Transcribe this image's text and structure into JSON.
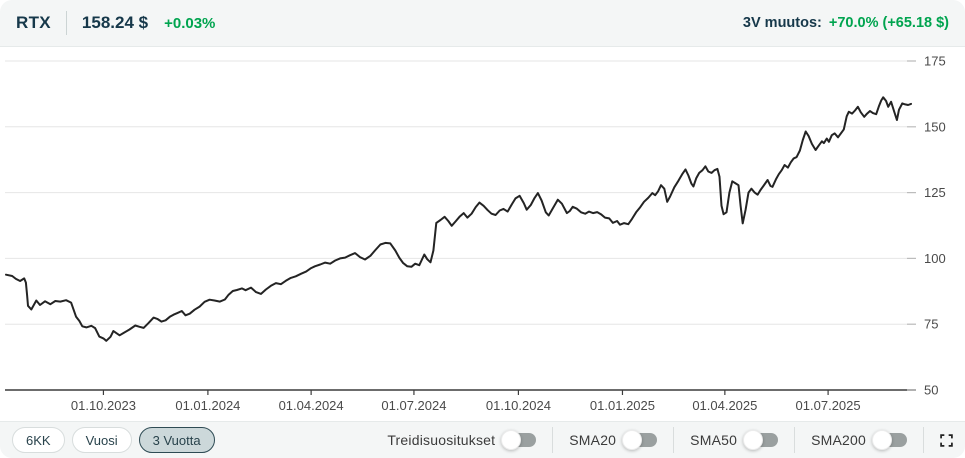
{
  "header": {
    "ticker": "RTX",
    "price": "158.24 $",
    "change_percent": "+0.03%",
    "period_change_label": "3V muutos:",
    "period_change_value": "+70.0% (+65.18 $)"
  },
  "controls": {
    "periods": [
      {
        "label": "6KK",
        "active": false
      },
      {
        "label": "Vuosi",
        "active": false
      },
      {
        "label": "3 Vuotta",
        "active": true
      }
    ],
    "toggles": [
      {
        "label": "Treidisuositukset",
        "on": false
      },
      {
        "label": "SMA20",
        "on": false
      },
      {
        "label": "SMA50",
        "on": false
      },
      {
        "label": "SMA200",
        "on": false
      }
    ]
  },
  "colors": {
    "accent_green": "#00a44f",
    "navy": "#16384a",
    "bar_bg": "#f4f6f6",
    "active_button_bg": "#ccd8da",
    "active_button_border": "#2e4b54"
  },
  "chart_data": {
    "type": "line",
    "title": "RTX price, 3 years",
    "x_unit": "decimal_year",
    "xlim": [
      2023.513,
      2025.696
    ],
    "ylim": [
      50,
      175
    ],
    "grid": true,
    "legend": "none",
    "y_ticks": [
      50,
      75,
      100,
      125,
      150,
      175
    ],
    "x_ticks": [
      {
        "t": 2023.748,
        "label": "01.10.2023"
      },
      {
        "t": 2024.0,
        "label": "01.01.2024"
      },
      {
        "t": 2024.249,
        "label": "01.04.2024"
      },
      {
        "t": 2024.497,
        "label": "01.07.2024"
      },
      {
        "t": 2024.749,
        "label": "01.10.2024"
      },
      {
        "t": 2025.0,
        "label": "01.01.2025"
      },
      {
        "t": 2025.247,
        "label": "01.04.2025"
      },
      {
        "t": 2025.496,
        "label": "01.07.2025"
      }
    ],
    "line_color": "#242424",
    "grid_color": "#e6e6e6",
    "axis_color": "#3c3c3c",
    "tick_label_color": "#4a4a4a",
    "series": [
      {
        "name": "RTX",
        "points": [
          [
            2023.513,
            93.8
          ],
          [
            2023.528,
            93.3
          ],
          [
            2023.537,
            92.2
          ],
          [
            2023.547,
            91.4
          ],
          [
            2023.557,
            92.4
          ],
          [
            2023.561,
            90.8
          ],
          [
            2023.564,
            86.0
          ],
          [
            2023.566,
            82.0
          ],
          [
            2023.574,
            80.6
          ],
          [
            2023.586,
            84.0
          ],
          [
            2023.595,
            82.3
          ],
          [
            2023.607,
            83.7
          ],
          [
            2023.62,
            82.6
          ],
          [
            2023.632,
            83.8
          ],
          [
            2023.644,
            83.6
          ],
          [
            2023.658,
            84.1
          ],
          [
            2023.67,
            83.2
          ],
          [
            2023.682,
            77.8
          ],
          [
            2023.69,
            76.2
          ],
          [
            2023.697,
            74.2
          ],
          [
            2023.707,
            73.8
          ],
          [
            2023.719,
            74.4
          ],
          [
            2023.728,
            73.5
          ],
          [
            2023.738,
            70.3
          ],
          [
            2023.748,
            69.6
          ],
          [
            2023.755,
            68.7
          ],
          [
            2023.765,
            70.2
          ],
          [
            2023.772,
            72.4
          ],
          [
            2023.779,
            71.6
          ],
          [
            2023.787,
            70.8
          ],
          [
            2023.796,
            71.6
          ],
          [
            2023.811,
            73.0
          ],
          [
            2023.825,
            74.5
          ],
          [
            2023.835,
            74.0
          ],
          [
            2023.845,
            73.6
          ],
          [
            2023.857,
            75.5
          ],
          [
            2023.869,
            77.5
          ],
          [
            2023.878,
            77.0
          ],
          [
            2023.888,
            76.0
          ],
          [
            2023.898,
            76.5
          ],
          [
            2023.908,
            77.8
          ],
          [
            2023.917,
            78.6
          ],
          [
            2023.927,
            79.3
          ],
          [
            2023.937,
            80.0
          ],
          [
            2023.946,
            78.4
          ],
          [
            2023.956,
            79.0
          ],
          [
            2023.968,
            80.5
          ],
          [
            2023.98,
            81.7
          ],
          [
            2023.992,
            83.5
          ],
          [
            2024.004,
            84.3
          ],
          [
            2024.016,
            84.0
          ],
          [
            2024.029,
            83.6
          ],
          [
            2024.041,
            84.4
          ],
          [
            2024.05,
            86.2
          ],
          [
            2024.06,
            87.6
          ],
          [
            2024.07,
            88.0
          ],
          [
            2024.082,
            88.6
          ],
          [
            2024.091,
            87.9
          ],
          [
            2024.104,
            88.9
          ],
          [
            2024.116,
            87.2
          ],
          [
            2024.128,
            86.5
          ],
          [
            2024.14,
            88.2
          ],
          [
            2024.152,
            89.6
          ],
          [
            2024.164,
            90.6
          ],
          [
            2024.176,
            90.2
          ],
          [
            2024.188,
            91.5
          ],
          [
            2024.2,
            92.6
          ],
          [
            2024.212,
            93.2
          ],
          [
            2024.225,
            94.2
          ],
          [
            2024.237,
            95.0
          ],
          [
            2024.249,
            96.3
          ],
          [
            2024.258,
            97.0
          ],
          [
            2024.271,
            97.7
          ],
          [
            2024.283,
            98.4
          ],
          [
            2024.295,
            98.0
          ],
          [
            2024.307,
            99.2
          ],
          [
            2024.319,
            100.0
          ],
          [
            2024.331,
            100.3
          ],
          [
            2024.343,
            101.2
          ],
          [
            2024.355,
            102.0
          ],
          [
            2024.367,
            100.5
          ],
          [
            2024.379,
            99.6
          ],
          [
            2024.392,
            101.0
          ],
          [
            2024.404,
            103.2
          ],
          [
            2024.416,
            105.3
          ],
          [
            2024.428,
            105.9
          ],
          [
            2024.44,
            105.7
          ],
          [
            2024.452,
            103.0
          ],
          [
            2024.462,
            100.2
          ],
          [
            2024.471,
            98.2
          ],
          [
            2024.481,
            97.0
          ],
          [
            2024.491,
            96.8
          ],
          [
            2024.5,
            98.0
          ],
          [
            2024.51,
            97.4
          ],
          [
            2024.522,
            101.5
          ],
          [
            2024.529,
            99.7
          ],
          [
            2024.537,
            98.5
          ],
          [
            2024.544,
            103.0
          ],
          [
            2024.551,
            113.5
          ],
          [
            2024.561,
            114.6
          ],
          [
            2024.571,
            115.8
          ],
          [
            2024.58,
            114.2
          ],
          [
            2024.588,
            112.4
          ],
          [
            2024.597,
            114.0
          ],
          [
            2024.607,
            115.8
          ],
          [
            2024.617,
            117.2
          ],
          [
            2024.626,
            115.5
          ],
          [
            2024.636,
            117.0
          ],
          [
            2024.646,
            119.5
          ],
          [
            2024.655,
            121.2
          ],
          [
            2024.665,
            120.0
          ],
          [
            2024.675,
            118.3
          ],
          [
            2024.684,
            117.0
          ],
          [
            2024.694,
            116.5
          ],
          [
            2024.704,
            118.2
          ],
          [
            2024.713,
            118.8
          ],
          [
            2024.723,
            117.8
          ],
          [
            2024.733,
            120.5
          ],
          [
            2024.742,
            122.8
          ],
          [
            2024.752,
            123.8
          ],
          [
            2024.762,
            121.0
          ],
          [
            2024.769,
            118.5
          ],
          [
            2024.779,
            120.3
          ],
          [
            2024.788,
            123.0
          ],
          [
            2024.796,
            124.8
          ],
          [
            2024.805,
            122.0
          ],
          [
            2024.815,
            117.5
          ],
          [
            2024.822,
            116.3
          ],
          [
            2024.832,
            119.0
          ],
          [
            2024.844,
            122.3
          ],
          [
            2024.854,
            120.8
          ],
          [
            2024.866,
            117.2
          ],
          [
            2024.873,
            118.0
          ],
          [
            2024.88,
            119.6
          ],
          [
            2024.89,
            118.9
          ],
          [
            2024.9,
            117.5
          ],
          [
            2024.91,
            117.0
          ],
          [
            2024.919,
            117.8
          ],
          [
            2024.929,
            117.2
          ],
          [
            2024.939,
            117.6
          ],
          [
            2024.948,
            116.8
          ],
          [
            2024.958,
            115.5
          ],
          [
            2024.968,
            115.2
          ],
          [
            2024.977,
            113.5
          ],
          [
            2024.987,
            114.2
          ],
          [
            2024.994,
            112.8
          ],
          [
            2025.004,
            113.4
          ],
          [
            2025.014,
            113.0
          ],
          [
            2025.023,
            115.0
          ],
          [
            2025.033,
            117.5
          ],
          [
            2025.043,
            119.5
          ],
          [
            2025.052,
            121.5
          ],
          [
            2025.062,
            123.0
          ],
          [
            2025.072,
            124.8
          ],
          [
            2025.079,
            124.0
          ],
          [
            2025.086,
            125.5
          ],
          [
            2025.093,
            127.8
          ],
          [
            2025.101,
            126.5
          ],
          [
            2025.108,
            121.5
          ],
          [
            2025.115,
            123.5
          ],
          [
            2025.125,
            127.0
          ],
          [
            2025.135,
            129.5
          ],
          [
            2025.144,
            132.0
          ],
          [
            2025.152,
            133.8
          ],
          [
            2025.159,
            131.5
          ],
          [
            2025.166,
            128.5
          ],
          [
            2025.171,
            127.3
          ],
          [
            2025.178,
            130.5
          ],
          [
            2025.185,
            132.5
          ],
          [
            2025.193,
            133.5
          ],
          [
            2025.2,
            135.0
          ],
          [
            2025.207,
            133.0
          ],
          [
            2025.215,
            132.5
          ],
          [
            2025.222,
            133.5
          ],
          [
            2025.229,
            134.0
          ],
          [
            2025.234,
            131.0
          ],
          [
            2025.239,
            120.0
          ],
          [
            2025.244,
            116.8
          ],
          [
            2025.251,
            117.5
          ],
          [
            2025.258,
            125.0
          ],
          [
            2025.265,
            129.3
          ],
          [
            2025.273,
            128.5
          ],
          [
            2025.28,
            127.8
          ],
          [
            2025.285,
            120.0
          ],
          [
            2025.29,
            113.3
          ],
          [
            2025.297,
            118.5
          ],
          [
            2025.304,
            125.0
          ],
          [
            2025.311,
            126.5
          ],
          [
            2025.319,
            125.0
          ],
          [
            2025.326,
            124.2
          ],
          [
            2025.333,
            126.0
          ],
          [
            2025.34,
            127.5
          ],
          [
            2025.35,
            129.8
          ],
          [
            2025.357,
            127.5
          ],
          [
            2025.362,
            127.2
          ],
          [
            2025.37,
            130.0
          ],
          [
            2025.377,
            132.0
          ],
          [
            2025.384,
            133.5
          ],
          [
            2025.391,
            135.5
          ],
          [
            2025.399,
            134.5
          ],
          [
            2025.406,
            136.5
          ],
          [
            2025.413,
            138.0
          ],
          [
            2025.42,
            138.5
          ],
          [
            2025.428,
            141.0
          ],
          [
            2025.435,
            145.0
          ],
          [
            2025.442,
            148.2
          ],
          [
            2025.449,
            146.5
          ],
          [
            2025.457,
            143.5
          ],
          [
            2025.466,
            141.2
          ],
          [
            2025.474,
            143.0
          ],
          [
            2025.481,
            144.5
          ],
          [
            2025.486,
            143.8
          ],
          [
            2025.493,
            145.5
          ],
          [
            2025.498,
            144.3
          ],
          [
            2025.505,
            146.8
          ],
          [
            2025.512,
            147.5
          ],
          [
            2025.52,
            146.0
          ],
          [
            2025.527,
            147.5
          ],
          [
            2025.534,
            149.0
          ],
          [
            2025.541,
            154.0
          ],
          [
            2025.546,
            155.7
          ],
          [
            2025.554,
            155.0
          ],
          [
            2025.561,
            156.2
          ],
          [
            2025.568,
            157.6
          ],
          [
            2025.575,
            155.5
          ],
          [
            2025.583,
            153.8
          ],
          [
            2025.59,
            155.0
          ],
          [
            2025.597,
            156.0
          ],
          [
            2025.604,
            155.2
          ],
          [
            2025.612,
            154.8
          ],
          [
            2025.619,
            158.0
          ],
          [
            2025.624,
            160.0
          ],
          [
            2025.629,
            161.2
          ],
          [
            2025.636,
            159.8
          ],
          [
            2025.641,
            157.6
          ],
          [
            2025.648,
            159.5
          ],
          [
            2025.655,
            156.0
          ],
          [
            2025.662,
            152.6
          ],
          [
            2025.667,
            156.5
          ],
          [
            2025.675,
            158.9
          ],
          [
            2025.682,
            158.5
          ],
          [
            2025.689,
            158.3
          ],
          [
            2025.696,
            158.7
          ]
        ]
      }
    ]
  }
}
